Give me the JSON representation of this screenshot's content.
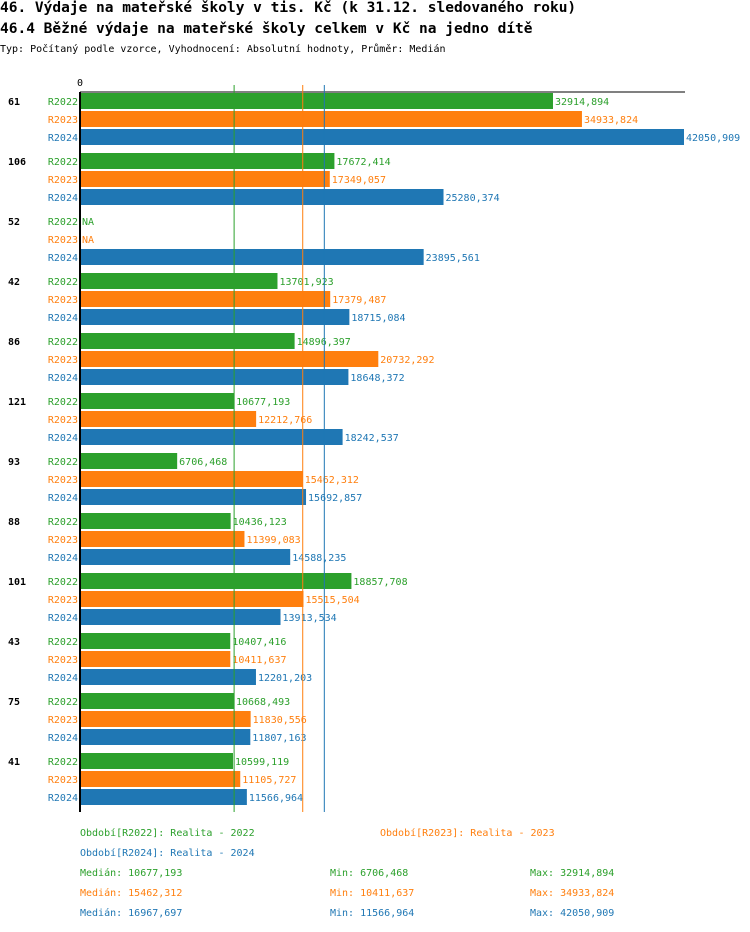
{
  "title": "46. Výdaje na mateřské školy v tis. Kč (k 31.12. sledovaného roku)",
  "subtitle": "46.4 Běžné výdaje na mateřské školy celkem v Kč na jedno dítě",
  "info": "Typ: Počítaný podle vzorce, Vyhodnocení: Absolutní hodnoty, Průměr: Medián",
  "chart_data": {
    "type": "bar",
    "orientation": "horizontal",
    "xlim": [
      0,
      42050.909
    ],
    "x_tick_labels": [
      "0"
    ],
    "categories": [
      "61",
      "106",
      "52",
      "42",
      "86",
      "121",
      "93",
      "88",
      "101",
      "43",
      "75",
      "41"
    ],
    "series": [
      {
        "name": "R2022",
        "color": "#2ca02c",
        "values": [
          32914.894,
          17672.414,
          null,
          13701.923,
          14896.397,
          10677.193,
          6706.468,
          10436.123,
          18857.708,
          10407.416,
          10668.493,
          10599.119
        ],
        "labels": [
          "32914,894",
          "17672,414",
          "NA",
          "13701,923",
          "14896,397",
          "10677,193",
          "6706,468",
          "10436,123",
          "18857,708",
          "10407,416",
          "10668,493",
          "10599,119"
        ]
      },
      {
        "name": "R2023",
        "color": "#ff7f0e",
        "values": [
          34933.824,
          17349.057,
          null,
          17379.487,
          20732.292,
          12212.766,
          15462.312,
          11399.083,
          15515.504,
          10411.637,
          11830.556,
          11105.727
        ],
        "labels": [
          "34933,824",
          "17349,057",
          "NA",
          "17379,487",
          "20732,292",
          "12212,766",
          "15462,312",
          "11399,083",
          "15515,504",
          "10411,637",
          "11830,556",
          "11105,727"
        ]
      },
      {
        "name": "R2024",
        "color": "#1f77b4",
        "values": [
          42050.909,
          25280.374,
          23895.561,
          18715.084,
          18648.372,
          18242.537,
          15692.857,
          14588.235,
          13913.534,
          12201.203,
          11807.163,
          11566.964
        ],
        "labels": [
          "42050,909",
          "25280,374",
          "23895,561",
          "18715,084",
          "18648,372",
          "18242,537",
          "15692,857",
          "14588,235",
          "13913,534",
          "12201,203",
          "11807,163",
          "11566,964"
        ]
      }
    ],
    "medians": [
      10677.193,
      15462.312,
      16967.697
    ],
    "grid": false
  },
  "legend": {
    "periods": [
      "Období[R2022]: Realita - 2022",
      "Období[R2023]: Realita - 2023",
      "Období[R2024]: Realita - 2024"
    ],
    "stats": [
      {
        "median": "Medián: 10677,193",
        "min": "Min: 6706,468",
        "max": "Max: 32914,894"
      },
      {
        "median": "Medián: 15462,312",
        "min": "Min: 10411,637",
        "max": "Max: 34933,824"
      },
      {
        "median": "Medián: 16967,697",
        "min": "Min: 11566,964",
        "max": "Max: 42050,909"
      }
    ]
  }
}
